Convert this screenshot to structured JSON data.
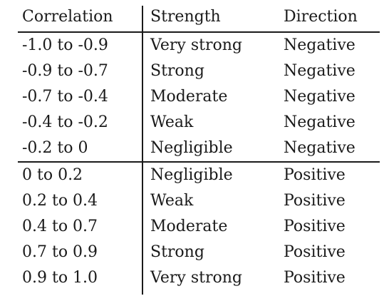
{
  "table": {
    "headers": {
      "correlation": "Correlation",
      "strength": "Strength",
      "direction": "Direction"
    },
    "rows": [
      {
        "correlation": "-1.0 to -0.9",
        "strength": "Very strong",
        "direction": "Negative"
      },
      {
        "correlation": "-0.9 to -0.7",
        "strength": "Strong",
        "direction": "Negative"
      },
      {
        "correlation": "-0.7 to -0.4",
        "strength": "Moderate",
        "direction": "Negative"
      },
      {
        "correlation": "-0.4 to -0.2",
        "strength": "Weak",
        "direction": "Negative"
      },
      {
        "correlation": "-0.2 to 0",
        "strength": "Negligible",
        "direction": "Negative"
      },
      {
        "correlation": "0 to 0.2",
        "strength": "Negligible",
        "direction": "Positive"
      },
      {
        "correlation": "0.2 to 0.4",
        "strength": "Weak",
        "direction": "Positive"
      },
      {
        "correlation": "0.4 to 0.7",
        "strength": "Moderate",
        "direction": "Positive"
      },
      {
        "correlation": "0.7 to 0.9",
        "strength": "Strong",
        "direction": "Positive"
      },
      {
        "correlation": "0.9 to 1.0",
        "strength": "Very strong",
        "direction": "Positive"
      }
    ]
  },
  "colors": {
    "text": "#1a1a1a",
    "rule": "#1a1a1a",
    "background": "#ffffff"
  }
}
